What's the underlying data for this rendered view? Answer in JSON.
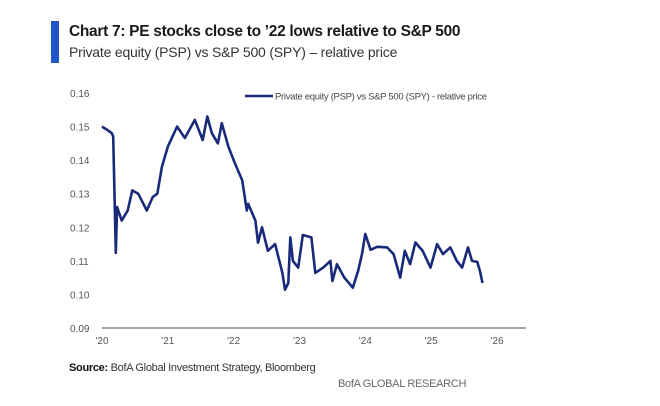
{
  "header": {
    "title": "Chart 7: PE stocks close to ’22 lows relative to S&P 500",
    "subtitle": "Private equity (PSP) vs  S&P 500 (SPY) – relative price",
    "accent_color": "#1f55c4"
  },
  "chart_data": {
    "type": "line",
    "title": "Chart 7: PE stocks close to ’22 lows relative to S&P 500",
    "subtitle": "Private equity (PSP) vs  S&P 500 (SPY) – relative price",
    "xlabel": "",
    "ylabel": "",
    "ylim": [
      0.09,
      0.16
    ],
    "xlim": [
      2020,
      2026
    ],
    "y_ticks": [
      "0.16",
      "0.15",
      "0.14",
      "0.13",
      "0.12",
      "0.11",
      "0.10",
      "0.09"
    ],
    "x_ticks": [
      "'20",
      "'21",
      "'22",
      "'23",
      "'24",
      "'25",
      "'26"
    ],
    "grid": false,
    "legend_position": "top-right",
    "series": [
      {
        "name": "Private equity (PSP) vs S&P 500 (SPY) - relative price",
        "color": "#1a2a7a",
        "x": [
          2020.0,
          2020.08,
          2020.15,
          2020.17,
          2020.21,
          2020.23,
          2020.3,
          2020.39,
          2020.46,
          2020.55,
          2020.68,
          2020.77,
          2020.84,
          2020.91,
          2021.0,
          2021.14,
          2021.26,
          2021.41,
          2021.53,
          2021.6,
          2021.67,
          2021.76,
          2021.82,
          2021.92,
          2022.02,
          2022.13,
          2022.2,
          2022.22,
          2022.33,
          2022.37,
          2022.43,
          2022.52,
          2022.63,
          2022.74,
          2022.78,
          2022.83,
          2022.86,
          2022.9,
          2022.98,
          2023.05,
          2023.18,
          2023.24,
          2023.36,
          2023.47,
          2023.5,
          2023.57,
          2023.68,
          2023.81,
          2023.89,
          2023.95,
          2024.0,
          2024.08,
          2024.18,
          2024.33,
          2024.43,
          2024.53,
          2024.6,
          2024.68,
          2024.76,
          2024.87,
          2024.99,
          2025.09,
          2025.18,
          2025.29,
          2025.39,
          2025.47,
          2025.56,
          2025.62,
          2025.7,
          2025.74,
          2025.78
        ],
        "values": [
          0.15,
          0.149,
          0.148,
          0.147,
          0.1124,
          0.126,
          0.122,
          0.125,
          0.131,
          0.13,
          0.125,
          0.129,
          0.13,
          0.138,
          0.144,
          0.15,
          0.1466,
          0.152,
          0.146,
          0.153,
          0.148,
          0.145,
          0.151,
          0.144,
          0.139,
          0.134,
          0.125,
          0.127,
          0.122,
          0.1154,
          0.12,
          0.113,
          0.115,
          0.1064,
          0.1014,
          0.1034,
          0.117,
          0.11,
          0.108,
          0.1177,
          0.117,
          0.1064,
          0.108,
          0.11,
          0.104,
          0.109,
          0.105,
          0.102,
          0.107,
          0.112,
          0.118,
          0.1133,
          0.1142,
          0.114,
          0.112,
          0.105,
          0.113,
          0.109,
          0.1155,
          0.113,
          0.108,
          0.115,
          0.112,
          0.114,
          0.11,
          0.108,
          0.114,
          0.11,
          0.1097,
          0.107,
          0.1034
        ]
      }
    ]
  },
  "footer": {
    "source_label": "Source:",
    "source_text": " BofA Global Investment Strategy, Bloomberg",
    "brand": "BofA GLOBAL RESEARCH"
  }
}
